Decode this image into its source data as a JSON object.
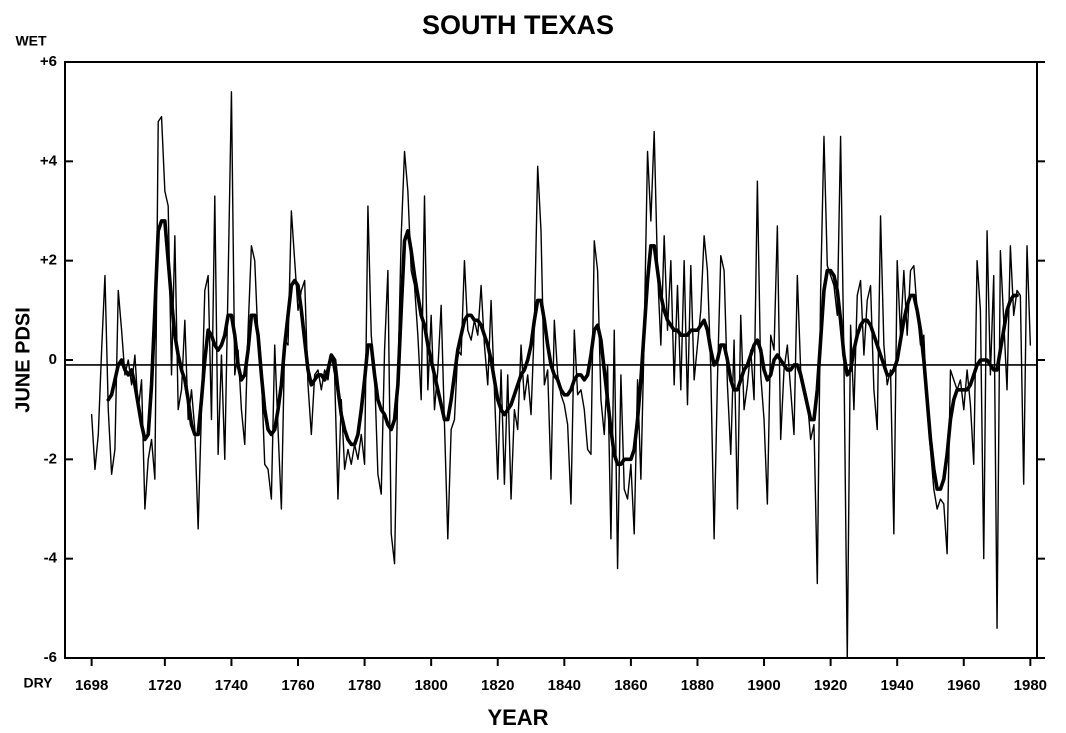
{
  "chart_data": {
    "type": "line",
    "title": "SOUTH TEXAS",
    "x_label": "YEAR",
    "y_label": "JUNE PDSI",
    "y_top_annotation": "WET",
    "y_bottom_annotation": "DRY",
    "xlim": [
      1690,
      1982
    ],
    "ylim": [
      -6,
      6
    ],
    "xticks": [
      1698,
      1720,
      1740,
      1760,
      1780,
      1800,
      1820,
      1840,
      1860,
      1880,
      1900,
      1920,
      1940,
      1960,
      1980
    ],
    "yticks": [
      {
        "value": 6,
        "label": "+6"
      },
      {
        "value": 4,
        "label": "+4"
      },
      {
        "value": 2,
        "label": "+2"
      },
      0,
      -2,
      -4,
      -6
    ],
    "hline": -0.1,
    "grid": false,
    "x": [
      1698,
      1699,
      1700,
      1701,
      1702,
      1703,
      1704,
      1705,
      1706,
      1707,
      1708,
      1709,
      1710,
      1711,
      1712,
      1713,
      1714,
      1715,
      1716,
      1717,
      1718,
      1719,
      1720,
      1721,
      1722,
      1723,
      1724,
      1725,
      1726,
      1727,
      1728,
      1729,
      1730,
      1731,
      1732,
      1733,
      1734,
      1735,
      1736,
      1737,
      1738,
      1739,
      1740,
      1741,
      1742,
      1743,
      1744,
      1745,
      1746,
      1747,
      1748,
      1749,
      1750,
      1751,
      1752,
      1753,
      1754,
      1755,
      1756,
      1757,
      1758,
      1759,
      1760,
      1761,
      1762,
      1763,
      1764,
      1765,
      1766,
      1767,
      1768,
      1769,
      1770,
      1771,
      1772,
      1773,
      1774,
      1775,
      1776,
      1777,
      1778,
      1779,
      1780,
      1781,
      1782,
      1783,
      1784,
      1785,
      1786,
      1787,
      1788,
      1789,
      1790,
      1791,
      1792,
      1793,
      1794,
      1795,
      1796,
      1797,
      1798,
      1799,
      1800,
      1801,
      1802,
      1803,
      1804,
      1805,
      1806,
      1807,
      1808,
      1809,
      1810,
      1811,
      1812,
      1813,
      1814,
      1815,
      1816,
      1817,
      1818,
      1819,
      1820,
      1821,
      1822,
      1823,
      1824,
      1825,
      1826,
      1827,
      1828,
      1829,
      1830,
      1831,
      1832,
      1833,
      1834,
      1835,
      1836,
      1837,
      1838,
      1839,
      1840,
      1841,
      1842,
      1843,
      1844,
      1845,
      1846,
      1847,
      1848,
      1849,
      1850,
      1851,
      1852,
      1853,
      1854,
      1855,
      1856,
      1857,
      1858,
      1859,
      1860,
      1861,
      1862,
      1863,
      1864,
      1865,
      1866,
      1867,
      1868,
      1869,
      1870,
      1871,
      1872,
      1873,
      1874,
      1875,
      1876,
      1877,
      1878,
      1879,
      1880,
      1881,
      1882,
      1883,
      1884,
      1885,
      1886,
      1887,
      1888,
      1889,
      1890,
      1891,
      1892,
      1893,
      1894,
      1895,
      1896,
      1897,
      1898,
      1899,
      1900,
      1901,
      1902,
      1903,
      1904,
      1905,
      1906,
      1907,
      1908,
      1909,
      1910,
      1911,
      1912,
      1913,
      1914,
      1915,
      1916,
      1917,
      1918,
      1919,
      1920,
      1921,
      1922,
      1923,
      1924,
      1925,
      1926,
      1927,
      1928,
      1929,
      1930,
      1931,
      1932,
      1933,
      1934,
      1935,
      1936,
      1937,
      1938,
      1939,
      1940,
      1941,
      1942,
      1943,
      1944,
      1945,
      1946,
      1947,
      1948,
      1949,
      1950,
      1951,
      1952,
      1953,
      1954,
      1955,
      1956,
      1957,
      1958,
      1959,
      1960,
      1961,
      1962,
      1963,
      1964,
      1965,
      1966,
      1967,
      1968,
      1969,
      1970,
      1971,
      1972,
      1973,
      1974,
      1975,
      1976,
      1977,
      1978,
      1979,
      1980
    ],
    "series": [
      {
        "color": "#000000",
        "line_width": 1.4,
        "values": [
          -1.1,
          -2.2,
          -1.5,
          0.2,
          1.7,
          -1.0,
          -2.3,
          -1.8,
          1.4,
          0.6,
          -0.3,
          0.0,
          -0.5,
          0.1,
          -1.0,
          -0.4,
          -3.0,
          -2.0,
          -1.6,
          -2.4,
          4.8,
          4.9,
          3.4,
          3.1,
          -0.3,
          2.5,
          -1.0,
          -0.6,
          0.8,
          -1.2,
          -0.6,
          -1.4,
          -3.4,
          -1.0,
          1.4,
          1.7,
          -1.2,
          3.3,
          -1.9,
          0.1,
          -2.0,
          1.6,
          5.4,
          -0.3,
          0.2,
          -1.0,
          -1.7,
          0.6,
          2.3,
          2.0,
          0.4,
          -0.3,
          -2.1,
          -2.2,
          -2.8,
          0.3,
          -1.4,
          -3.0,
          0.4,
          0.3,
          3.0,
          2.0,
          1.0,
          1.4,
          1.6,
          -0.5,
          -1.5,
          -0.3,
          -0.2,
          -0.6,
          -0.2,
          -0.4,
          0.1,
          -0.3,
          -2.8,
          -0.8,
          -2.2,
          -1.8,
          -2.1,
          -1.7,
          -2.0,
          -1.5,
          -2.1,
          3.1,
          0.5,
          -0.3,
          -2.3,
          -2.7,
          0.2,
          1.8,
          -3.5,
          -4.1,
          -0.4,
          2.5,
          4.2,
          3.4,
          1.8,
          1.5,
          0.5,
          -0.8,
          3.3,
          -0.6,
          0.9,
          -1.0,
          -0.2,
          1.1,
          -1.3,
          -3.6,
          -1.4,
          -1.2,
          0.2,
          0.1,
          2.0,
          0.6,
          0.4,
          0.8,
          0.5,
          1.5,
          0.3,
          -0.5,
          1.2,
          -0.6,
          -2.4,
          -0.2,
          -2.5,
          -0.3,
          -2.8,
          -1.0,
          -1.4,
          0.3,
          -0.8,
          -0.3,
          -1.1,
          0.7,
          3.9,
          2.6,
          -0.5,
          -0.2,
          -2.4,
          0.8,
          -0.3,
          -0.7,
          -0.9,
          -1.3,
          -2.9,
          0.6,
          -0.7,
          -0.6,
          -1.0,
          -1.8,
          -1.9,
          2.4,
          1.8,
          -0.8,
          -1.5,
          -0.1,
          -3.6,
          0.6,
          -4.2,
          -0.3,
          -2.6,
          -2.8,
          -2.1,
          -3.5,
          -0.4,
          -2.4,
          0.5,
          4.2,
          2.8,
          4.6,
          1.8,
          0.3,
          2.5,
          0.6,
          2.0,
          -0.5,
          1.5,
          -0.6,
          2.0,
          -0.9,
          1.9,
          -0.4,
          0.3,
          1.0,
          2.5,
          1.8,
          -0.2,
          -3.6,
          -0.4,
          2.1,
          1.8,
          -0.5,
          -1.9,
          0.4,
          -3.0,
          0.9,
          -1.0,
          -0.5,
          0.2,
          -0.8,
          3.6,
          -0.3,
          -1.2,
          -2.9,
          0.5,
          0.2,
          2.7,
          -1.6,
          -0.2,
          0.3,
          -0.6,
          -1.5,
          1.7,
          -0.2,
          -0.5,
          -0.8,
          -1.6,
          -1.3,
          -4.5,
          1.4,
          4.5,
          1.9,
          1.7,
          1.5,
          0.9,
          4.5,
          0.0,
          -6.0,
          0.7,
          -1.0,
          1.3,
          1.6,
          0.1,
          1.2,
          1.5,
          -0.6,
          -1.4,
          2.9,
          0.3,
          -0.5,
          -0.2,
          -3.5,
          2.0,
          0.5,
          1.8,
          0.5,
          1.8,
          1.9,
          1.0,
          0.3,
          0.5,
          -1.0,
          -1.8,
          -2.6,
          -3.0,
          -2.8,
          -2.9,
          -3.9,
          -0.2,
          -0.4,
          -0.6,
          -0.4,
          -1.0,
          -0.2,
          -0.9,
          -2.1,
          2.0,
          1.0,
          -4.0,
          2.6,
          -0.3,
          1.7,
          -5.4,
          2.2,
          0.8,
          -0.6,
          2.3,
          0.9,
          1.4,
          1.3,
          -2.5,
          2.3,
          0.3
        ]
      },
      {
        "color": "#000000",
        "line_width": 3.6,
        "values": [
          null,
          null,
          null,
          null,
          null,
          -0.8,
          -0.7,
          -0.4,
          -0.1,
          0.0,
          -0.2,
          -0.3,
          -0.2,
          -0.5,
          -0.9,
          -1.3,
          -1.6,
          -1.5,
          -0.5,
          1.0,
          2.6,
          2.8,
          2.8,
          2.0,
          1.2,
          0.5,
          0.1,
          -0.2,
          -0.4,
          -0.8,
          -1.3,
          -1.5,
          -1.5,
          -0.8,
          0.0,
          0.6,
          0.5,
          0.3,
          0.2,
          0.3,
          0.5,
          0.9,
          0.9,
          0.5,
          -0.1,
          -0.4,
          -0.3,
          0.2,
          0.9,
          0.9,
          0.5,
          -0.3,
          -1.0,
          -1.4,
          -1.5,
          -1.4,
          -1.0,
          -0.5,
          0.3,
          0.9,
          1.5,
          1.6,
          1.5,
          1.0,
          0.4,
          -0.2,
          -0.5,
          -0.4,
          -0.3,
          -0.3,
          -0.4,
          -0.2,
          0.1,
          0.0,
          -0.6,
          -1.1,
          -1.4,
          -1.6,
          -1.7,
          -1.7,
          -1.5,
          -1.0,
          -0.4,
          0.3,
          0.3,
          -0.3,
          -0.8,
          -1.0,
          -1.1,
          -1.3,
          -1.4,
          -1.2,
          -0.5,
          1.0,
          2.4,
          2.6,
          2.2,
          1.7,
          1.3,
          0.9,
          0.7,
          0.3,
          0.0,
          -0.3,
          -0.6,
          -0.9,
          -1.2,
          -1.2,
          -0.8,
          -0.3,
          0.2,
          0.5,
          0.8,
          0.9,
          0.9,
          0.8,
          0.8,
          0.7,
          0.5,
          0.3,
          0.0,
          -0.4,
          -0.8,
          -1.0,
          -1.1,
          -1.0,
          -0.9,
          -0.7,
          -0.5,
          -0.3,
          -0.2,
          0.0,
          0.3,
          0.8,
          1.2,
          1.2,
          0.8,
          0.3,
          -0.1,
          -0.3,
          -0.4,
          -0.6,
          -0.7,
          -0.7,
          -0.6,
          -0.4,
          -0.3,
          -0.3,
          -0.4,
          -0.3,
          0.1,
          0.6,
          0.7,
          0.4,
          -0.2,
          -0.8,
          -1.4,
          -1.9,
          -2.1,
          -2.1,
          -2.0,
          -2.0,
          -2.0,
          -1.8,
          -1.2,
          -0.4,
          0.6,
          1.6,
          2.3,
          2.3,
          1.8,
          1.3,
          1.0,
          0.8,
          0.7,
          0.6,
          0.6,
          0.5,
          0.5,
          0.5,
          0.6,
          0.6,
          0.6,
          0.7,
          0.8,
          0.6,
          0.2,
          -0.1,
          0.0,
          0.3,
          0.3,
          0.0,
          -0.4,
          -0.6,
          -0.6,
          -0.4,
          -0.2,
          -0.1,
          0.1,
          0.3,
          0.4,
          0.2,
          -0.2,
          -0.4,
          -0.3,
          0.0,
          0.1,
          0.0,
          -0.1,
          -0.2,
          -0.2,
          -0.1,
          -0.1,
          -0.3,
          -0.6,
          -0.9,
          -1.2,
          -1.2,
          -0.6,
          0.4,
          1.4,
          1.8,
          1.8,
          1.7,
          1.4,
          0.8,
          0.1,
          -0.3,
          -0.2,
          0.2,
          0.5,
          0.7,
          0.8,
          0.8,
          0.7,
          0.5,
          0.3,
          0.1,
          -0.1,
          -0.3,
          -0.3,
          -0.2,
          0.0,
          0.4,
          0.8,
          1.1,
          1.3,
          1.3,
          1.0,
          0.6,
          0.0,
          -0.8,
          -1.6,
          -2.2,
          -2.6,
          -2.6,
          -2.4,
          -1.9,
          -1.2,
          -0.8,
          -0.6,
          -0.6,
          -0.6,
          -0.6,
          -0.5,
          -0.3,
          -0.1,
          0.0,
          0.0,
          0.0,
          -0.1,
          -0.2,
          -0.2,
          0.2,
          0.6,
          1.0,
          1.2,
          1.3,
          1.3,
          null,
          null,
          null,
          null
        ]
      }
    ]
  }
}
